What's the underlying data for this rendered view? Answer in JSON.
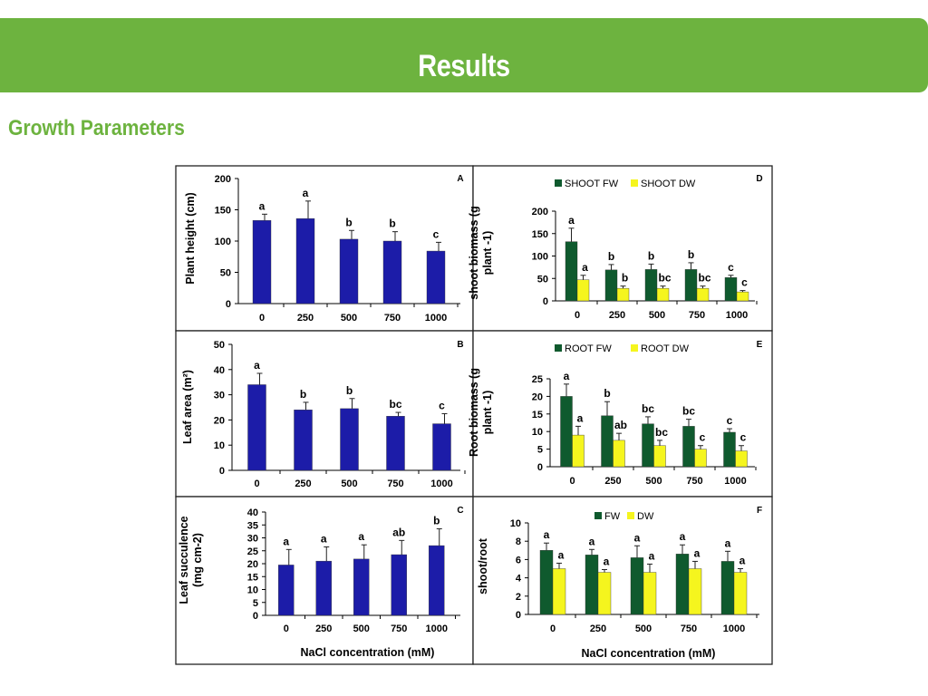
{
  "header": {
    "title": "Results"
  },
  "section": {
    "subtitle": "Growth Parameters"
  },
  "figure": {
    "shared_xlabel": "NaCl concentration (mM)"
  },
  "colors": {
    "banner": "#6db33f",
    "subtitle": "#6db33f",
    "bar_blue": "#1c1ca8",
    "bar_dark_green": "#0f5a2e",
    "bar_yellow": "#f5f51e"
  },
  "chart_data": [
    {
      "id": "A",
      "type": "bar",
      "panel_letter": "A",
      "categories": [
        "0",
        "250",
        "500",
        "750",
        "1000"
      ],
      "ylabel": "Plant height (cm)",
      "xlabel": "",
      "ylim": [
        0,
        200
      ],
      "yticks": [
        0,
        50,
        100,
        150,
        200
      ],
      "series": [
        {
          "name": "",
          "color": "#1c1ca8",
          "values": [
            133,
            136,
            103,
            100,
            84
          ],
          "errors": [
            10,
            28,
            14,
            15,
            14
          ],
          "labels": [
            "a",
            "a",
            "b",
            "b",
            "c"
          ]
        }
      ]
    },
    {
      "id": "D",
      "type": "bar",
      "panel_letter": "D",
      "categories": [
        "0",
        "250",
        "500",
        "750",
        "1000"
      ],
      "ylabel": "shoot biomass (g plant -1)",
      "xlabel": "",
      "ylim": [
        0,
        200
      ],
      "yticks": [
        0,
        50,
        100,
        150,
        200
      ],
      "legend": [
        "SHOOT FW",
        "SHOOT DW"
      ],
      "series": [
        {
          "name": "SHOOT FW",
          "color": "#0f5a2e",
          "values": [
            132,
            69,
            70,
            70,
            52
          ],
          "errors": [
            30,
            12,
            12,
            15,
            5
          ],
          "labels": [
            "a",
            "b",
            "b",
            "b",
            "c"
          ]
        },
        {
          "name": "SHOOT DW",
          "color": "#f5f51e",
          "values": [
            47,
            28,
            28,
            28,
            20
          ],
          "errors": [
            10,
            5,
            5,
            5,
            3
          ],
          "labels": [
            "a",
            "b",
            "bc",
            "bc",
            "c"
          ]
        }
      ]
    },
    {
      "id": "B",
      "type": "bar",
      "panel_letter": "B",
      "categories": [
        "0",
        "250",
        "500",
        "750",
        "1000"
      ],
      "ylabel": "Leaf area (m²)",
      "xlabel": "",
      "ylim": [
        0,
        50
      ],
      "yticks": [
        0,
        10,
        20,
        30,
        40,
        50
      ],
      "series": [
        {
          "name": "",
          "color": "#1c1ca8",
          "values": [
            34,
            24,
            24.5,
            21.5,
            18.5
          ],
          "errors": [
            4.5,
            3,
            4,
            1.5,
            4
          ],
          "labels": [
            "a",
            "b",
            "b",
            "bc",
            "c"
          ]
        }
      ]
    },
    {
      "id": "E",
      "type": "bar",
      "panel_letter": "E",
      "categories": [
        "0",
        "250",
        "500",
        "750",
        "1000"
      ],
      "ylabel": "Root biomass (g plant -1)",
      "xlabel": "",
      "ylim": [
        0,
        25
      ],
      "yticks": [
        0,
        5,
        10,
        15,
        20,
        25
      ],
      "legend": [
        "ROOT FW",
        "ROOT DW"
      ],
      "series": [
        {
          "name": "ROOT FW",
          "color": "#0f5a2e",
          "values": [
            20,
            14.5,
            12.2,
            11.5,
            9.8
          ],
          "errors": [
            3.5,
            4,
            2,
            2,
            1
          ],
          "labels": [
            "a",
            "b",
            "bc",
            "bc",
            "c"
          ]
        },
        {
          "name": "ROOT DW",
          "color": "#f5f51e",
          "values": [
            9,
            7.5,
            6,
            5,
            4.5
          ],
          "errors": [
            2.5,
            2,
            1.5,
            1,
            1.5
          ],
          "labels": [
            "a",
            "ab",
            "bc",
            "c",
            "c"
          ]
        }
      ]
    },
    {
      "id": "C",
      "type": "bar",
      "panel_letter": "C",
      "categories": [
        "0",
        "250",
        "500",
        "750",
        "1000"
      ],
      "ylabel": "Leaf succulence (mg cm-2)",
      "xlabel": "NaCl concentration (mM)",
      "ylim": [
        0,
        40
      ],
      "yticks": [
        0,
        5,
        10,
        15,
        20,
        25,
        30,
        35,
        40
      ],
      "series": [
        {
          "name": "",
          "color": "#1c1ca8",
          "values": [
            19.5,
            21,
            21.8,
            23.5,
            27
          ],
          "errors": [
            6,
            5.5,
            5.5,
            5.5,
            6.5
          ],
          "labels": [
            "a",
            "a",
            "a",
            "ab",
            "b"
          ]
        }
      ]
    },
    {
      "id": "F",
      "type": "bar",
      "panel_letter": "F",
      "categories": [
        "0",
        "250",
        "500",
        "750",
        "1000"
      ],
      "ylabel": "shoot/root",
      "xlabel": "NaCl concentration (mM)",
      "ylim": [
        0,
        10
      ],
      "yticks": [
        0,
        2,
        4,
        6,
        8,
        10
      ],
      "legend": [
        "FW",
        "DW"
      ],
      "series": [
        {
          "name": "FW",
          "color": "#0f5a2e",
          "values": [
            7,
            6.5,
            6.2,
            6.6,
            5.8
          ],
          "errors": [
            0.8,
            0.6,
            1.3,
            1,
            1.1
          ],
          "labels": [
            "a",
            "a",
            "a",
            "a",
            "a"
          ]
        },
        {
          "name": "DW",
          "color": "#f5f51e",
          "values": [
            5,
            4.6,
            4.6,
            5,
            4.6
          ],
          "errors": [
            0.6,
            0.3,
            0.9,
            0.8,
            0.4
          ],
          "labels": [
            "a",
            "a",
            "a",
            "a",
            "a"
          ]
        }
      ]
    }
  ]
}
